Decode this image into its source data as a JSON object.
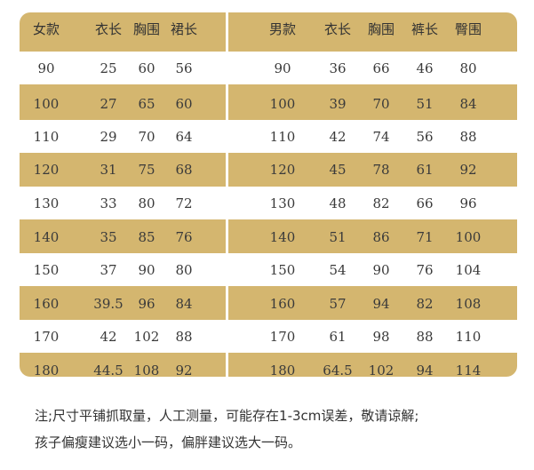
{
  "women": {
    "headers": [
      "女款",
      "衣长",
      "胸围",
      "裙长"
    ],
    "rows": [
      [
        "90",
        "25",
        "60",
        "56"
      ],
      [
        "100",
        "27",
        "65",
        "60"
      ],
      [
        "110",
        "29",
        "70",
        "64"
      ],
      [
        "120",
        "31",
        "75",
        "68"
      ],
      [
        "130",
        "33",
        "80",
        "72"
      ],
      [
        "140",
        "35",
        "85",
        "76"
      ],
      [
        "150",
        "37",
        "90",
        "80"
      ],
      [
        "160",
        "39.5",
        "96",
        "84"
      ],
      [
        "170",
        "42",
        "102",
        "88"
      ],
      [
        "180",
        "44.5",
        "108",
        "92"
      ]
    ]
  },
  "men": {
    "headers": [
      "男款",
      "衣长",
      "胸围",
      "裤长",
      "臀围"
    ],
    "rows": [
      [
        "90",
        "36",
        "66",
        "46",
        "80"
      ],
      [
        "100",
        "39",
        "70",
        "51",
        "84"
      ],
      [
        "110",
        "42",
        "74",
        "56",
        "88"
      ],
      [
        "120",
        "45",
        "78",
        "61",
        "92"
      ],
      [
        "130",
        "48",
        "82",
        "66",
        "96"
      ],
      [
        "140",
        "51",
        "86",
        "71",
        "100"
      ],
      [
        "150",
        "54",
        "90",
        "76",
        "104"
      ],
      [
        "160",
        "57",
        "94",
        "82",
        "108"
      ],
      [
        "170",
        "61",
        "98",
        "88",
        "110"
      ],
      [
        "180",
        "64.5",
        "102",
        "94",
        "114"
      ]
    ]
  },
  "notes": {
    "line1": "注;尺寸平铺抓取量，人工测量，可能存在1-3cm误差，敬请谅解;",
    "line2": "孩子偏瘦建议选小一码，偏胖建议选大一码。"
  },
  "colors": {
    "band": "#d4b66f",
    "white": "#ffffff",
    "text": "#3a3a3a"
  }
}
